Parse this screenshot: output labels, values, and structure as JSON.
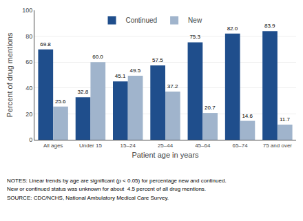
{
  "chart_data": {
    "type": "bar",
    "categories": [
      "All ages",
      "Under 15",
      "15–24",
      "25–44",
      "45–64",
      "65–74",
      "75 and over"
    ],
    "series": [
      {
        "name": "Continued",
        "color": "#1f4e8c",
        "values": [
          69.8,
          32.8,
          45.1,
          57.5,
          75.3,
          82.0,
          83.9
        ],
        "value_labels": [
          "69.8",
          "32.8",
          "45.1",
          "57.5",
          "75.3",
          "82.0",
          "83.9"
        ]
      },
      {
        "name": "New",
        "color": "#a0b4cc",
        "values": [
          25.6,
          60.0,
          49.5,
          37.2,
          20.7,
          14.6,
          11.7
        ],
        "value_labels": [
          "25.6",
          "60.0",
          "49.5",
          "37.2",
          "20.7",
          "14.6",
          "11.7"
        ]
      }
    ],
    "xlabel": "Patient age in years",
    "ylabel": "Percent of drug mentions",
    "ylim": [
      0,
      100
    ],
    "yticks": [
      0,
      20,
      40,
      60,
      80,
      100
    ],
    "grid": true,
    "legend": "upper center",
    "data_labels": true,
    "annotations": [
      "NOTES: Linear trends by age are significant (p < 0.05) for percentage new and continued.",
      "New or continued status was unknown for about  4.5 percent of all drug mentions.",
      "SOURCE: CDC/NCHS, National Ambulatory Medical Care Survey."
    ]
  }
}
